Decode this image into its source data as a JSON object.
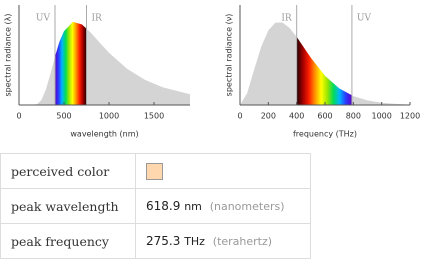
{
  "chart_data": [
    {
      "type": "area",
      "xlabel": "wavelength (nm)",
      "ylabel": "spectral radiance (λ)",
      "x": [
        0,
        100,
        200,
        250,
        300,
        350,
        400,
        450,
        500,
        600,
        700,
        800,
        900,
        1000,
        1200,
        1400,
        1600,
        1900
      ],
      "values": [
        0,
        0,
        0.009,
        0.061,
        0.189,
        0.378,
        0.582,
        0.76,
        0.887,
        0.998,
        0.966,
        0.865,
        0.744,
        0.627,
        0.435,
        0.301,
        0.212,
        0.129
      ],
      "color": "#d4d4d4",
      "spectrum": "forward",
      "xlim": [
        0,
        1900
      ],
      "ylim": [
        0,
        1.2
      ],
      "xticks": [
        0,
        500,
        1000,
        1500
      ],
      "annotations": [
        {
          "text": "UV",
          "x": 400
        },
        {
          "text": "IR",
          "x": 750
        }
      ]
    },
    {
      "type": "area",
      "xlabel": "frequency (THz)",
      "ylabel": "spectral radiance (ν)",
      "x": [
        0,
        50,
        100,
        150,
        200,
        250,
        300,
        350,
        400,
        500,
        600,
        700,
        800,
        900,
        1000,
        1100,
        1200
      ],
      "values": [
        0,
        0.141,
        0.424,
        0.7,
        0.896,
        0.989,
        0.99,
        0.924,
        0.817,
        0.567,
        0.35,
        0.199,
        0.107,
        0.055,
        0.027,
        0.013,
        0.006
      ],
      "color": "#d4d4d4",
      "spectrum": "reverse",
      "xlim": [
        0,
        1200
      ],
      "ylim": [
        0,
        1.2
      ],
      "xticks": [
        0,
        200,
        400,
        600,
        800,
        1000,
        1200
      ],
      "annotations": [
        {
          "text": "IR",
          "x": 400
        },
        {
          "text": "UV",
          "x": 790
        }
      ]
    }
  ],
  "table": {
    "rows": [
      {
        "label": "perceived color",
        "color": "#fed7ae"
      },
      {
        "label": "peak wavelength",
        "value": 618.9,
        "unit": "nm",
        "note": "(nanometers)"
      },
      {
        "label": "peak frequency",
        "value": 275.3,
        "unit": "THz",
        "note": "(terahertz)"
      }
    ]
  }
}
